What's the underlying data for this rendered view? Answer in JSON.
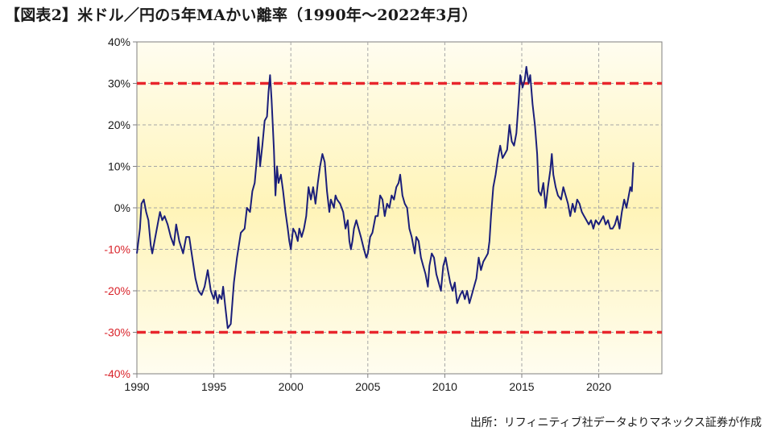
{
  "title": "【図表2】米ドル／円の5年MAかい離率（1990年〜2022年3月）",
  "source": "出所：リフィニティブ社データよりマネックス証券が作成",
  "chart_data": {
    "type": "line",
    "title": "【図表2】米ドル／円の5年MAかい離率（1990年〜2022年3月）",
    "xlabel": "",
    "ylabel": "",
    "xlim": [
      1990,
      2024.1
    ],
    "ylim": [
      -40,
      40
    ],
    "y_ticks": [
      40,
      30,
      20,
      10,
      0,
      -10,
      -20,
      -30,
      -40
    ],
    "y_tick_labels": [
      "40%",
      "30%",
      "20%",
      "10%",
      "0%",
      "-10%",
      "-20%",
      "-30%",
      "-40%"
    ],
    "red_tick_labels": [
      "-10%",
      "-20%",
      "-30%",
      "-40%"
    ],
    "x_ticks": [
      1990,
      1995,
      2000,
      2005,
      2010,
      2015,
      2020
    ],
    "x_tick_labels": [
      "1990",
      "1995",
      "2000",
      "2005",
      "2010",
      "2015",
      "2020"
    ],
    "grid": true,
    "reference_lines": [
      {
        "y": 30,
        "color": "#e8262c",
        "style": "dashed"
      },
      {
        "y": -30,
        "color": "#e8262c",
        "style": "dashed"
      }
    ],
    "colors": {
      "line": "#1b1f7a",
      "background_top": "#fffbe6",
      "background_mid": "#fff4b8"
    },
    "series": [
      {
        "points": [
          [
            1990.0,
            -11
          ],
          [
            1990.2,
            -5
          ],
          [
            1990.3,
            1
          ],
          [
            1990.45,
            2
          ],
          [
            1990.6,
            -1
          ],
          [
            1990.75,
            -3
          ],
          [
            1990.9,
            -9
          ],
          [
            1991.0,
            -11
          ],
          [
            1991.2,
            -7
          ],
          [
            1991.35,
            -4
          ],
          [
            1991.5,
            -1
          ],
          [
            1991.65,
            -3
          ],
          [
            1991.8,
            -2
          ],
          [
            1992.0,
            -4
          ],
          [
            1992.2,
            -7
          ],
          [
            1992.4,
            -9
          ],
          [
            1992.55,
            -4
          ],
          [
            1992.75,
            -8
          ],
          [
            1993.0,
            -11
          ],
          [
            1993.2,
            -7
          ],
          [
            1993.4,
            -7
          ],
          [
            1993.6,
            -12
          ],
          [
            1993.8,
            -17
          ],
          [
            1994.0,
            -20
          ],
          [
            1994.2,
            -21
          ],
          [
            1994.4,
            -19
          ],
          [
            1994.6,
            -15
          ],
          [
            1994.8,
            -20
          ],
          [
            1995.0,
            -22
          ],
          [
            1995.1,
            -20
          ],
          [
            1995.25,
            -23
          ],
          [
            1995.35,
            -21
          ],
          [
            1995.5,
            -22
          ],
          [
            1995.6,
            -19
          ],
          [
            1995.75,
            -24
          ],
          [
            1995.9,
            -29
          ],
          [
            1996.1,
            -28
          ],
          [
            1996.3,
            -18
          ],
          [
            1996.5,
            -12
          ],
          [
            1996.75,
            -6
          ],
          [
            1997.0,
            -5
          ],
          [
            1997.15,
            0
          ],
          [
            1997.35,
            -1
          ],
          [
            1997.5,
            4
          ],
          [
            1997.65,
            6
          ],
          [
            1997.8,
            12
          ],
          [
            1997.9,
            17
          ],
          [
            1998.0,
            10
          ],
          [
            1998.15,
            15
          ],
          [
            1998.3,
            21
          ],
          [
            1998.45,
            22
          ],
          [
            1998.55,
            28
          ],
          [
            1998.65,
            32
          ],
          [
            1998.75,
            26
          ],
          [
            1998.9,
            14
          ],
          [
            1999.0,
            3
          ],
          [
            1999.1,
            10
          ],
          [
            1999.2,
            6
          ],
          [
            1999.35,
            8
          ],
          [
            1999.5,
            4
          ],
          [
            1999.65,
            -1
          ],
          [
            1999.8,
            -5
          ],
          [
            1999.9,
            -8
          ],
          [
            2000.0,
            -10
          ],
          [
            2000.15,
            -5
          ],
          [
            2000.3,
            -6
          ],
          [
            2000.45,
            -8
          ],
          [
            2000.55,
            -5
          ],
          [
            2000.7,
            -7
          ],
          [
            2000.85,
            -5
          ],
          [
            2001.0,
            -2
          ],
          [
            2001.15,
            5
          ],
          [
            2001.3,
            2
          ],
          [
            2001.45,
            5
          ],
          [
            2001.6,
            1
          ],
          [
            2001.75,
            6
          ],
          [
            2001.9,
            10
          ],
          [
            2002.05,
            13
          ],
          [
            2002.2,
            11
          ],
          [
            2002.35,
            4
          ],
          [
            2002.5,
            -1
          ],
          [
            2002.6,
            2
          ],
          [
            2002.8,
            0
          ],
          [
            2002.9,
            3
          ],
          [
            2003.0,
            2
          ],
          [
            2003.2,
            1
          ],
          [
            2003.4,
            -1
          ],
          [
            2003.55,
            -5
          ],
          [
            2003.7,
            -3
          ],
          [
            2003.8,
            -8
          ],
          [
            2003.9,
            -10
          ],
          [
            2004.0,
            -8
          ],
          [
            2004.1,
            -5
          ],
          [
            2004.25,
            -3
          ],
          [
            2004.4,
            -5
          ],
          [
            2004.55,
            -7
          ],
          [
            2004.75,
            -10
          ],
          [
            2004.9,
            -12
          ],
          [
            2005.0,
            -11
          ],
          [
            2005.15,
            -7
          ],
          [
            2005.3,
            -6
          ],
          [
            2005.5,
            -2
          ],
          [
            2005.65,
            -2
          ],
          [
            2005.8,
            3
          ],
          [
            2005.95,
            2
          ],
          [
            2006.1,
            -2
          ],
          [
            2006.25,
            1
          ],
          [
            2006.4,
            0
          ],
          [
            2006.55,
            3
          ],
          [
            2006.7,
            2
          ],
          [
            2006.85,
            5
          ],
          [
            2007.0,
            6
          ],
          [
            2007.1,
            8
          ],
          [
            2007.25,
            3
          ],
          [
            2007.4,
            1
          ],
          [
            2007.55,
            0
          ],
          [
            2007.7,
            -5
          ],
          [
            2007.85,
            -7
          ],
          [
            2007.95,
            -9
          ],
          [
            2008.05,
            -11
          ],
          [
            2008.15,
            -7
          ],
          [
            2008.3,
            -8
          ],
          [
            2008.45,
            -12
          ],
          [
            2008.6,
            -14
          ],
          [
            2008.75,
            -16
          ],
          [
            2008.9,
            -19
          ],
          [
            2009.0,
            -14
          ],
          [
            2009.15,
            -11
          ],
          [
            2009.3,
            -12
          ],
          [
            2009.45,
            -16
          ],
          [
            2009.6,
            -18
          ],
          [
            2009.75,
            -20
          ],
          [
            2009.9,
            -14
          ],
          [
            2010.05,
            -12
          ],
          [
            2010.2,
            -15
          ],
          [
            2010.35,
            -18
          ],
          [
            2010.5,
            -20
          ],
          [
            2010.65,
            -18
          ],
          [
            2010.8,
            -23
          ],
          [
            2011.0,
            -21
          ],
          [
            2011.15,
            -20
          ],
          [
            2011.3,
            -22
          ],
          [
            2011.45,
            -20
          ],
          [
            2011.6,
            -23
          ],
          [
            2011.75,
            -21
          ],
          [
            2011.9,
            -19
          ],
          [
            2012.05,
            -17
          ],
          [
            2012.2,
            -12
          ],
          [
            2012.35,
            -15
          ],
          [
            2012.5,
            -13
          ],
          [
            2012.65,
            -12
          ],
          [
            2012.8,
            -11
          ],
          [
            2012.9,
            -8
          ],
          [
            2013.0,
            -2
          ],
          [
            2013.15,
            5
          ],
          [
            2013.3,
            8
          ],
          [
            2013.45,
            12
          ],
          [
            2013.6,
            15
          ],
          [
            2013.75,
            12
          ],
          [
            2013.9,
            13
          ],
          [
            2014.05,
            14
          ],
          [
            2014.2,
            20
          ],
          [
            2014.35,
            16
          ],
          [
            2014.5,
            15
          ],
          [
            2014.65,
            18
          ],
          [
            2014.8,
            26
          ],
          [
            2014.9,
            32
          ],
          [
            2015.05,
            29
          ],
          [
            2015.2,
            31
          ],
          [
            2015.3,
            34
          ],
          [
            2015.45,
            30
          ],
          [
            2015.55,
            32
          ],
          [
            2015.7,
            25
          ],
          [
            2015.85,
            20
          ],
          [
            2016.0,
            13
          ],
          [
            2016.1,
            4
          ],
          [
            2016.25,
            3
          ],
          [
            2016.4,
            6
          ],
          [
            2016.55,
            0
          ],
          [
            2016.7,
            5
          ],
          [
            2016.85,
            9
          ],
          [
            2016.95,
            13
          ],
          [
            2017.05,
            8
          ],
          [
            2017.2,
            5
          ],
          [
            2017.35,
            3
          ],
          [
            2017.55,
            2
          ],
          [
            2017.7,
            5
          ],
          [
            2017.85,
            3
          ],
          [
            2018.0,
            1
          ],
          [
            2018.15,
            -2
          ],
          [
            2018.3,
            1
          ],
          [
            2018.45,
            -1
          ],
          [
            2018.6,
            2
          ],
          [
            2018.75,
            1
          ],
          [
            2018.9,
            -1
          ],
          [
            2019.05,
            -2
          ],
          [
            2019.2,
            -3
          ],
          [
            2019.35,
            -4
          ],
          [
            2019.5,
            -3
          ],
          [
            2019.65,
            -5
          ],
          [
            2019.8,
            -3
          ],
          [
            2020.0,
            -4
          ],
          [
            2020.15,
            -3
          ],
          [
            2020.3,
            -2
          ],
          [
            2020.45,
            -4
          ],
          [
            2020.6,
            -3
          ],
          [
            2020.75,
            -5
          ],
          [
            2020.9,
            -5
          ],
          [
            2021.05,
            -4
          ],
          [
            2021.2,
            -2
          ],
          [
            2021.35,
            -5
          ],
          [
            2021.5,
            -1
          ],
          [
            2021.65,
            2
          ],
          [
            2021.8,
            0
          ],
          [
            2021.95,
            3
          ],
          [
            2022.05,
            5
          ],
          [
            2022.15,
            4
          ],
          [
            2022.25,
            11
          ]
        ]
      }
    ]
  }
}
